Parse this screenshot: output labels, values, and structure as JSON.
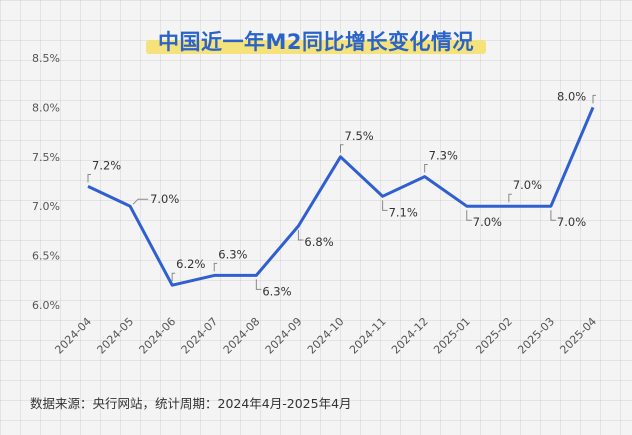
{
  "chart_data": {
    "type": "line",
    "title": "中国近一年M2同比增长变化情况",
    "categories": [
      "2024-04",
      "2024-05",
      "2024-06",
      "2024-07",
      "2024-08",
      "2024-09",
      "2024-10",
      "2024-11",
      "2024-12",
      "2025-01",
      "2025-02",
      "2025-03",
      "2025-04"
    ],
    "series": [
      {
        "values": [
          7.2,
          7.0,
          6.2,
          6.3,
          6.3,
          6.8,
          7.5,
          7.1,
          7.3,
          7.0,
          7.0,
          7.0,
          8.0
        ]
      }
    ],
    "data_labels": [
      "7.2%",
      "7.0%",
      "6.2%",
      "6.3%",
      "6.3%",
      "6.8%",
      "7.5%",
      "7.1%",
      "7.3%",
      "7.0%",
      "7.0%",
      "7.0%",
      "8.0%"
    ],
    "y_ticks": [
      "6.0%",
      "6.5%",
      "7.0%",
      "7.5%",
      "8.0%",
      "8.5%"
    ],
    "ylim": [
      6.0,
      8.5
    ],
    "grid": true,
    "color": "#2f5fd0"
  },
  "source": "数据来源：央行网站，统计周期：2024年4月-2025年4月"
}
